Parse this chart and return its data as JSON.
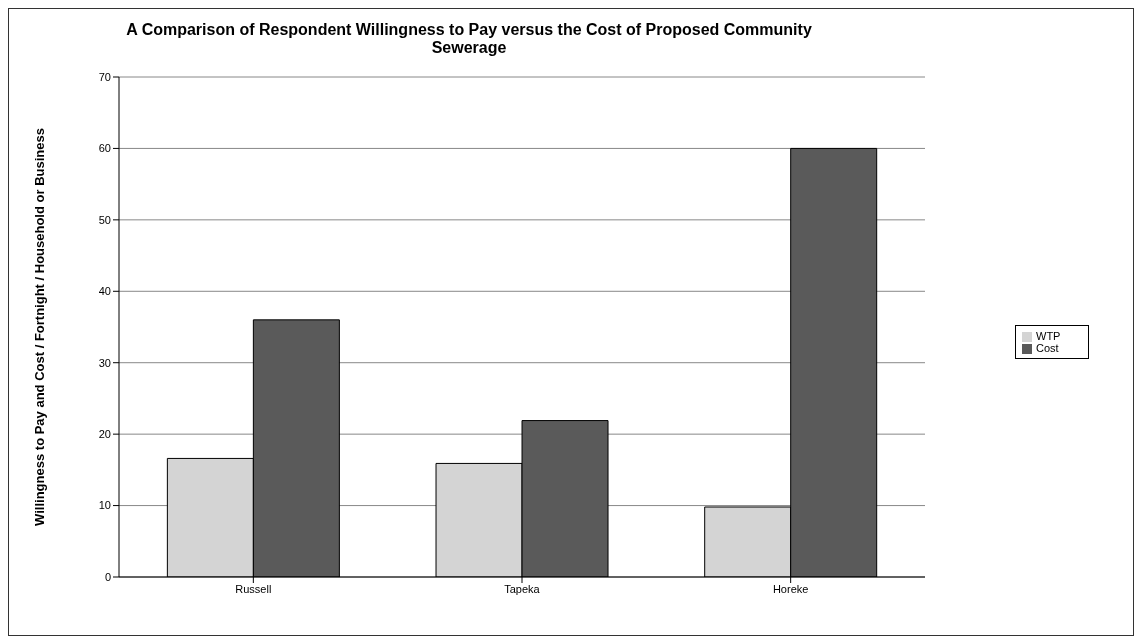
{
  "chart_data": {
    "type": "bar",
    "title": "A Comparison of Respondent Willingness to Pay versus the Cost of Proposed Community Sewerage",
    "ylabel": "Willingness to Pay and Cost / Fortnight / Household or Business",
    "categories": [
      "Russell",
      "Tapeka",
      "Horeke"
    ],
    "series": [
      {
        "name": "WTP",
        "color": "#d4d4d4",
        "values": [
          16.6,
          15.9,
          9.8
        ]
      },
      {
        "name": "Cost",
        "color": "#5a5a5a",
        "values": [
          36,
          21.9,
          60
        ]
      }
    ],
    "ylim": [
      0,
      70
    ],
    "yticks": [
      0,
      10,
      20,
      30,
      40,
      50,
      60,
      70
    ],
    "grid": "y",
    "legend": "right"
  }
}
